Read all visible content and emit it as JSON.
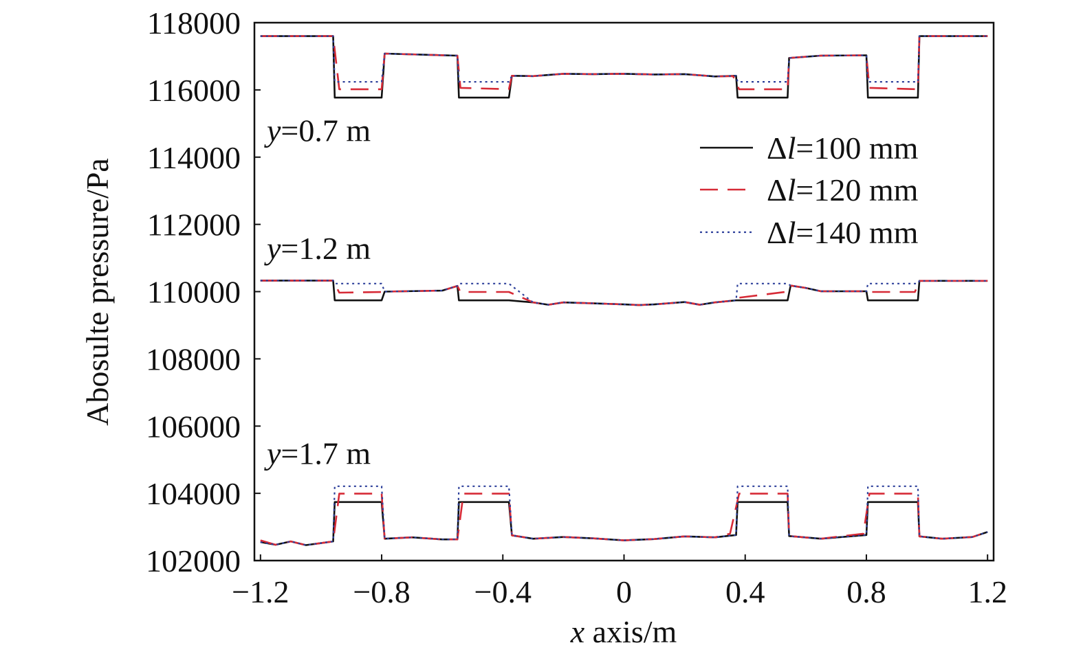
{
  "chart_data": {
    "type": "line",
    "title": "",
    "xlabel": "x axis/m",
    "xlabel_italic_part": "x",
    "xlabel_rest": " axis/m",
    "ylabel": "Abosulte pressure/Pa",
    "xlim": [
      -1.22,
      1.22
    ],
    "ylim": [
      102000,
      118000
    ],
    "xticks": [
      -1.2,
      -0.8,
      -0.4,
      0,
      0.4,
      0.8,
      1.2
    ],
    "xtick_labels": [
      "−1.2",
      "−0.8",
      "−0.4",
      "0",
      "0.4",
      "0.8",
      "1.2"
    ],
    "yticks": [
      102000,
      104000,
      106000,
      108000,
      110000,
      112000,
      114000,
      116000,
      118000
    ],
    "ytick_labels": [
      "102000",
      "104000",
      "106000",
      "108000",
      "110000",
      "112000",
      "114000",
      "116000",
      "118000"
    ],
    "grid": false,
    "legend_position": "upper-right",
    "annotations": [
      {
        "italic": "y",
        "rest": "=0.7 m",
        "x": -1.2,
        "y": 114800
      },
      {
        "italic": "y",
        "rest": "=1.2 m",
        "x": -1.2,
        "y": 111300
      },
      {
        "italic": "y",
        "rest": "=1.7 m",
        "x": -1.2,
        "y": 105200
      }
    ],
    "series": [
      {
        "name": "Δl=100 mm",
        "name_prefix": "Δ",
        "name_italic": "l",
        "name_rest": "=100 mm",
        "color": "#111111",
        "dash": "solid",
        "curves": [
          {
            "profile": "y=0.7 m",
            "x": [
              -1.2,
              -0.96,
              -0.955,
              -0.8,
              -0.79,
              -0.55,
              -0.545,
              -0.38,
              -0.37,
              -0.3,
              -0.2,
              -0.1,
              0,
              0.1,
              0.2,
              0.3,
              0.37,
              0.375,
              0.54,
              0.545,
              0.65,
              0.8,
              0.805,
              0.97,
              0.975,
              1.2
            ],
            "y": [
              117600,
              117600,
              115770,
              115770,
              117080,
              117020,
              115770,
              115770,
              116420,
              116410,
              116480,
              116470,
              116480,
              116460,
              116470,
              116400,
              116420,
              115770,
              115770,
              116950,
              117020,
              117030,
              115770,
              115770,
              117600,
              117600
            ]
          },
          {
            "profile": "y=1.2 m",
            "x": [
              -1.2,
              -0.96,
              -0.955,
              -0.8,
              -0.79,
              -0.6,
              -0.55,
              -0.545,
              -0.38,
              -0.3,
              -0.25,
              -0.2,
              -0.1,
              0,
              0.05,
              0.1,
              0.2,
              0.25,
              0.3,
              0.37,
              0.375,
              0.54,
              0.55,
              0.6,
              0.65,
              0.8,
              0.805,
              0.97,
              0.975,
              1.2
            ],
            "y": [
              110330,
              110330,
              109740,
              109740,
              110000,
              110030,
              110170,
              109740,
              109740,
              109680,
              109610,
              109680,
              109650,
              109620,
              109600,
              109620,
              109690,
              109610,
              109680,
              109740,
              109740,
              109740,
              110180,
              110110,
              110010,
              110010,
              109740,
              109740,
              110320,
              110320
            ]
          },
          {
            "profile": "y=1.7 m",
            "x": [
              -1.2,
              -1.15,
              -1.1,
              -1.05,
              -1.0,
              -0.96,
              -0.955,
              -0.8,
              -0.79,
              -0.7,
              -0.6,
              -0.55,
              -0.545,
              -0.38,
              -0.37,
              -0.3,
              -0.2,
              -0.1,
              0,
              0.1,
              0.2,
              0.3,
              0.37,
              0.375,
              0.54,
              0.545,
              0.65,
              0.8,
              0.805,
              0.97,
              0.975,
              1.05,
              1.15,
              1.2
            ],
            "y": [
              102550,
              102470,
              102570,
              102460,
              102520,
              102570,
              103740,
              103740,
              102650,
              102690,
              102630,
              102630,
              103740,
              103740,
              102750,
              102650,
              102700,
              102660,
              102600,
              102640,
              102720,
              102690,
              102760,
              103740,
              103740,
              102730,
              102650,
              102760,
              103740,
              103740,
              102720,
              102650,
              102700,
              102850
            ]
          }
        ]
      },
      {
        "name": "Δl=120 mm",
        "name_prefix": "Δ",
        "name_italic": "l",
        "name_rest": "=120 mm",
        "color": "#d62a36",
        "dash": "dashed",
        "curves": [
          {
            "profile": "y=0.7 m",
            "x": [
              -1.2,
              -0.96,
              -0.94,
              -0.8,
              -0.79,
              -0.55,
              -0.54,
              -0.38,
              -0.37,
              -0.3,
              -0.2,
              -0.1,
              0,
              0.1,
              0.2,
              0.3,
              0.36,
              0.38,
              0.54,
              0.545,
              0.65,
              0.8,
              0.81,
              0.97,
              0.975,
              1.2
            ],
            "y": [
              117600,
              117600,
              116020,
              116020,
              117080,
              117020,
              116060,
              116020,
              116420,
              116410,
              116480,
              116470,
              116480,
              116460,
              116470,
              116400,
              116410,
              116020,
              116020,
              116950,
              117020,
              117030,
              116060,
              116020,
              117600,
              117600
            ]
          },
          {
            "profile": "y=1.2 m",
            "x": [
              -1.2,
              -0.96,
              -0.94,
              -0.8,
              -0.79,
              -0.6,
              -0.55,
              -0.54,
              -0.38,
              -0.3,
              -0.25,
              -0.2,
              -0.1,
              0,
              0.05,
              0.1,
              0.2,
              0.25,
              0.3,
              0.37,
              0.38,
              0.54,
              0.55,
              0.6,
              0.65,
              0.8,
              0.81,
              0.96,
              0.975,
              1.2
            ],
            "y": [
              110330,
              110330,
              109970,
              109990,
              110000,
              110030,
              110170,
              109990,
              109990,
              109680,
              109610,
              109680,
              109650,
              109620,
              109600,
              109620,
              109690,
              109610,
              109680,
              109740,
              109820,
              110000,
              110180,
              110110,
              110010,
              110010,
              109990,
              109990,
              110320,
              110320
            ]
          },
          {
            "profile": "y=1.7 m",
            "x": [
              -1.2,
              -1.15,
              -1.1,
              -1.05,
              -1.0,
              -0.96,
              -0.94,
              -0.8,
              -0.79,
              -0.7,
              -0.6,
              -0.55,
              -0.53,
              -0.38,
              -0.37,
              -0.3,
              -0.2,
              -0.1,
              0,
              0.1,
              0.2,
              0.3,
              0.35,
              0.38,
              0.54,
              0.545,
              0.65,
              0.79,
              0.81,
              0.97,
              0.975,
              1.05,
              1.15,
              1.2
            ],
            "y": [
              102600,
              102470,
              102570,
              102460,
              102520,
              102570,
              103990,
              103990,
              102650,
              102690,
              102630,
              102630,
              103990,
              103990,
              102750,
              102650,
              102700,
              102660,
              102600,
              102640,
              102720,
              102690,
              102800,
              103990,
              103990,
              102730,
              102650,
              102800,
              103990,
              103990,
              102720,
              102650,
              102700,
              102850
            ]
          }
        ]
      },
      {
        "name": "Δl=140 mm",
        "name_prefix": "Δ",
        "name_italic": "l",
        "name_rest": "=140 mm",
        "color": "#2c3f9a",
        "dash": "dotted",
        "curves": [
          {
            "profile": "y=0.7 m",
            "x": [
              -1.2,
              -0.96,
              -0.955,
              -0.8,
              -0.79,
              -0.55,
              -0.545,
              -0.38,
              -0.37,
              -0.3,
              -0.2,
              -0.1,
              0,
              0.1,
              0.2,
              0.3,
              0.37,
              0.375,
              0.54,
              0.545,
              0.65,
              0.8,
              0.805,
              0.97,
              0.975,
              1.2
            ],
            "y": [
              117600,
              117600,
              116240,
              116240,
              117080,
              117020,
              116240,
              116240,
              116420,
              116410,
              116480,
              116470,
              116480,
              116460,
              116470,
              116400,
              116420,
              116240,
              116240,
              116950,
              117020,
              117030,
              116240,
              116240,
              117600,
              117600
            ]
          },
          {
            "profile": "y=1.2 m",
            "x": [
              -1.2,
              -0.96,
              -0.955,
              -0.8,
              -0.79,
              -0.6,
              -0.55,
              -0.545,
              -0.38,
              -0.3,
              -0.25,
              -0.2,
              -0.1,
              0,
              0.05,
              0.1,
              0.2,
              0.25,
              0.3,
              0.37,
              0.375,
              0.54,
              0.55,
              0.6,
              0.65,
              0.8,
              0.805,
              0.97,
              0.975,
              1.2
            ],
            "y": [
              110330,
              110330,
              110240,
              110240,
              110000,
              110030,
              110170,
              110240,
              110240,
              109680,
              109610,
              109680,
              109650,
              109620,
              109600,
              109620,
              109690,
              109610,
              109680,
              109740,
              110240,
              110240,
              110180,
              110110,
              110010,
              110010,
              110240,
              110240,
              110320,
              110320
            ]
          },
          {
            "profile": "y=1.7 m",
            "x": [
              -1.2,
              -1.15,
              -1.1,
              -1.05,
              -1.0,
              -0.96,
              -0.955,
              -0.8,
              -0.79,
              -0.7,
              -0.6,
              -0.55,
              -0.545,
              -0.38,
              -0.37,
              -0.3,
              -0.2,
              -0.1,
              0,
              0.1,
              0.2,
              0.3,
              0.37,
              0.375,
              0.54,
              0.545,
              0.65,
              0.8,
              0.805,
              0.97,
              0.975,
              1.05,
              1.15,
              1.2
            ],
            "y": [
              102550,
              102470,
              102570,
              102460,
              102520,
              102570,
              104210,
              104210,
              102650,
              102690,
              102630,
              102630,
              104210,
              104210,
              102750,
              102650,
              102700,
              102660,
              102600,
              102640,
              102720,
              102690,
              102760,
              104210,
              104210,
              102730,
              102650,
              102760,
              104210,
              104210,
              102720,
              102650,
              102700,
              102850
            ]
          }
        ]
      }
    ]
  }
}
